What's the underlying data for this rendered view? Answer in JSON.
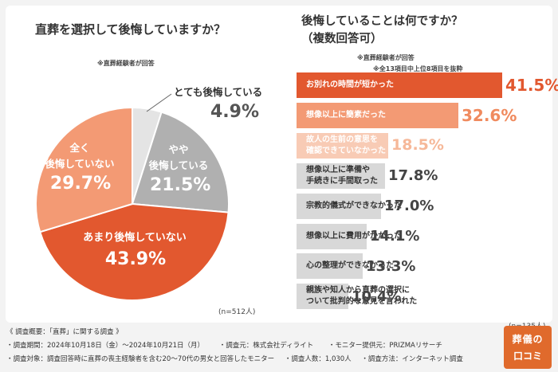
{
  "left_chart": {
    "title": "直葬を選択して後悔していますか？",
    "note": "※直葬経験者が回答",
    "n_label": "(n=512人)",
    "labels": {
      "very": "とても後悔している",
      "somewhat_l1": "やや",
      "somewhat_l2": "後悔している",
      "none_l1": "全く",
      "none_l2": "後悔していない",
      "not_much": "あまり後悔していない"
    },
    "value_labels": {
      "very": "4.9%",
      "somewhat": "21.5%",
      "none": "29.7%",
      "not_much": "43.9%"
    }
  },
  "right_chart": {
    "title_l1": "後悔していることは何ですか？",
    "title_l2": "（複数回答可）",
    "note1": "※直葬経験者が回答",
    "note2": "※全13項目中上位8項目を抜粋",
    "n_label": "(n=135人)"
  },
  "chart_data": [
    {
      "type": "pie",
      "title": "直葬を選択して後悔していますか？",
      "categories": [
        "とても後悔している",
        "やや後悔している",
        "全く後悔していない",
        "あまり後悔していない"
      ],
      "values": [
        4.9,
        21.5,
        29.7,
        43.9
      ],
      "colors": [
        "#e4e4e4",
        "#b0b0b0",
        "#f39a74",
        "#e2582f"
      ],
      "unit": "%",
      "n": 512
    },
    {
      "type": "bar",
      "orientation": "horizontal",
      "title": "後悔していることは何ですか？（複数回答可）",
      "categories": [
        "お別れの時間が短かった",
        "想像以上に簡素だった",
        "故人の生前の意思を確認できていなかった",
        "想像以上に準備や手続きに手間取った",
        "宗教的儀式ができなかった",
        "想像以上に費用がかかった",
        "心の整理ができなかった",
        "親族や知人から直葬の選択について批判的な意見を言われた"
      ],
      "category_lines": [
        [
          "お別れの時間が短かった"
        ],
        [
          "想像以上に簡素だった"
        ],
        [
          "故人の生前の意思を",
          "確認できていなかった"
        ],
        [
          "想像以上に準備や",
          "手続きに手間取った"
        ],
        [
          "宗教的儀式ができなかった"
        ],
        [
          "想像以上に費用がかかった"
        ],
        [
          "心の整理ができなかった"
        ],
        [
          "親族や知人から直葬の選択に",
          "ついて批判的な意見を言われた"
        ]
      ],
      "values": [
        41.5,
        32.6,
        18.5,
        17.8,
        17.0,
        14.1,
        13.3,
        10.4
      ],
      "value_labels": [
        "41.5%",
        "32.6%",
        "18.5%",
        "17.8%",
        "17.0%",
        "14.1%",
        "13.3%",
        "10.4%"
      ],
      "colors": [
        "#e2582f",
        "#f39a74",
        "#f8cbb5",
        "#d8d8d8",
        "#d8d8d8",
        "#d8d8d8",
        "#d8d8d8",
        "#d8d8d8"
      ],
      "unit": "%",
      "n": 135
    }
  ],
  "footer": {
    "heading": "《 調査概要：「直葬」に関する調査 》",
    "line1": [
      "・調査期間：2024年10月18日（金）～2024年10月21日（月）",
      "・調査元：株式会社ディライト",
      "・モニター提供元：PRIZMAリサーチ"
    ],
    "line2": [
      "・調査対象：調査回答時に直葬の喪主経験者を含む20～70代の男女と回答したモニター",
      "・調査人数：1,030人",
      "・調査方法：インターネット調査"
    ]
  },
  "logo": {
    "line1": "葬儀の",
    "line2": "口コミ"
  }
}
